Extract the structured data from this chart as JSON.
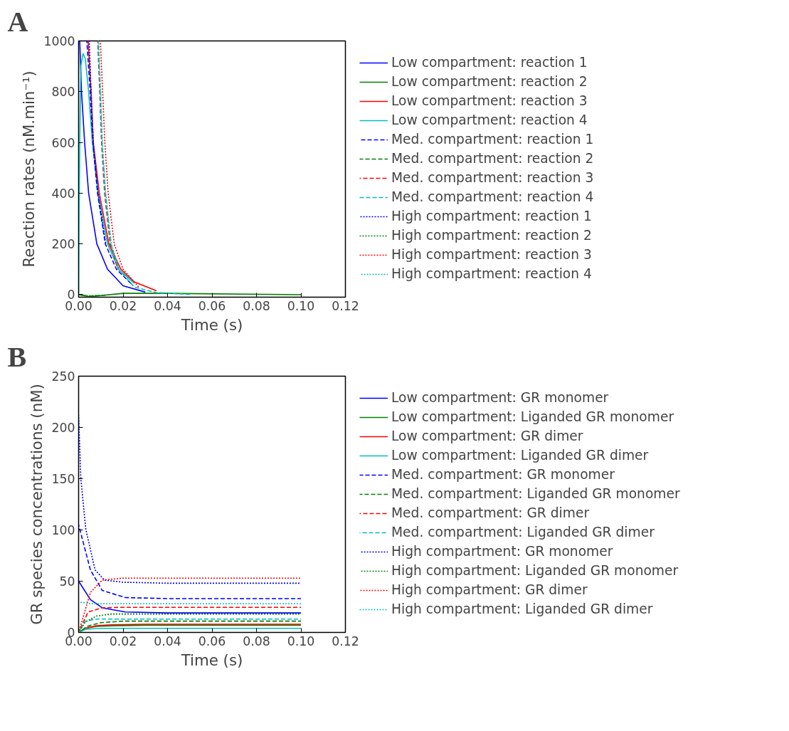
{
  "chart_data": [
    {
      "type": "line",
      "title": "A",
      "xlabel": "Time (s)",
      "ylabel": "Reaction rates (nM.min⁻¹)",
      "xlim": [
        0,
        0.12
      ],
      "ylim": [
        -10,
        1000
      ],
      "xticks": [
        {
          "value": 0,
          "label": "0.00"
        },
        {
          "value": 0.02,
          "label": "0.02"
        },
        {
          "value": 0.04,
          "label": "0.04"
        },
        {
          "value": 0.06,
          "label": "0.06"
        },
        {
          "value": 0.08,
          "label": "0.08"
        },
        {
          "value": 0.1,
          "label": "0.10"
        },
        {
          "value": 0.12,
          "label": "0.12"
        }
      ],
      "yticks": [
        0,
        200,
        400,
        600,
        800,
        1000
      ],
      "grid": false,
      "legend": "right",
      "series": [
        {
          "name": "Low compartment: reaction 1",
          "color": "#0000ff",
          "line_style": "solid",
          "x": [
            0.0005,
            0.0013,
            0.0027,
            0.0045,
            0.0082,
            0.013,
            0.02,
            0.03
          ],
          "values": [
            1000,
            800,
            600,
            400,
            200,
            100,
            35,
            10
          ]
        },
        {
          "name": "Low compartment: reaction 2",
          "color": "#008000",
          "line_style": "solid",
          "x": [
            0,
            0.005,
            0.02,
            0.04,
            0.1
          ],
          "values": [
            0,
            -8,
            5,
            5,
            0
          ]
        },
        {
          "name": "Low compartment: reaction 3",
          "color": "#ff0000",
          "line_style": "solid",
          "x": [
            0.0043,
            0.0056,
            0.0066,
            0.0093,
            0.0136,
            0.019,
            0.025,
            0.035
          ],
          "values": [
            1000,
            800,
            600,
            400,
            200,
            100,
            50,
            15
          ]
        },
        {
          "name": "Low compartment: reaction 4",
          "color": "#00bfbf",
          "line_style": "solid",
          "x": [
            0,
            0.0005,
            0.001,
            0.002,
            0.003,
            0.0045,
            0.0062,
            0.0088,
            0.013,
            0.018,
            0.025
          ],
          "values": [
            0,
            600,
            900,
            950,
            930,
            800,
            600,
            400,
            200,
            100,
            45
          ]
        },
        {
          "name": "Med. compartment: reaction 1",
          "color": "#0000ff",
          "line_style": "dashed",
          "x": [
            0.0037,
            0.0052,
            0.0064,
            0.0085,
            0.012,
            0.017,
            0.024
          ],
          "values": [
            1000,
            800,
            600,
            400,
            200,
            100,
            40
          ]
        },
        {
          "name": "Med. compartment: reaction 2",
          "color": "#008000",
          "line_style": "dashed",
          "x": [
            0,
            0.005,
            0.012
          ],
          "values": [
            0,
            -6,
            -2
          ]
        },
        {
          "name": "Med. compartment: reaction 3",
          "color": "#ff0000",
          "line_style": "dashed",
          "x": [
            0.0086,
            0.0095,
            0.0103,
            0.0117,
            0.0142,
            0.0177
          ],
          "values": [
            1000,
            800,
            600,
            400,
            200,
            100
          ]
        },
        {
          "name": "Med. compartment: reaction 4",
          "color": "#00bfbf",
          "line_style": "dashed",
          "x": [
            0.0088,
            0.0097,
            0.0105,
            0.012,
            0.0145,
            0.018,
            0.025,
            0.035,
            0.05
          ],
          "values": [
            1000,
            800,
            600,
            400,
            200,
            100,
            30,
            8,
            1
          ]
        },
        {
          "name": "High compartment: reaction 1",
          "color": "#0000ff",
          "line_style": "dotted",
          "x": [
            0.0048,
            0.0056,
            0.0066,
            0.0087,
            0.0122
          ],
          "values": [
            1000,
            800,
            600,
            400,
            200
          ]
        },
        {
          "name": "High compartment: reaction 2",
          "color": "#008000",
          "line_style": "dotted",
          "x": [
            0,
            0.003,
            0.008
          ],
          "values": [
            0,
            -5,
            -3
          ]
        },
        {
          "name": "High compartment: reaction 3",
          "color": "#ff0000",
          "line_style": "dotted",
          "x": [
            0.0098,
            0.0108,
            0.0118,
            0.0133,
            0.016,
            0.02,
            0.027
          ],
          "values": [
            1000,
            800,
            600,
            400,
            200,
            100,
            30
          ]
        },
        {
          "name": "High compartment: reaction 4",
          "color": "#00bfbf",
          "line_style": "dotted",
          "x": [
            0.009,
            0.0099,
            0.0107,
            0.0122,
            0.0147,
            0.0183
          ],
          "values": [
            1000,
            800,
            600,
            400,
            200,
            100
          ]
        }
      ]
    },
    {
      "type": "line",
      "title": "B",
      "xlabel": "Time (s)",
      "ylabel": "GR species concentrations (nM)",
      "xlim": [
        0,
        0.12
      ],
      "ylim": [
        0,
        250
      ],
      "xticks": [
        {
          "value": 0,
          "label": "0.00"
        },
        {
          "value": 0.02,
          "label": "0.02"
        },
        {
          "value": 0.04,
          "label": "0.04"
        },
        {
          "value": 0.06,
          "label": "0.06"
        },
        {
          "value": 0.08,
          "label": "0.08"
        },
        {
          "value": 0.1,
          "label": "0.10"
        },
        {
          "value": 0.12,
          "label": "0.12"
        }
      ],
      "yticks": [
        0,
        50,
        100,
        150,
        200,
        250
      ],
      "grid": false,
      "legend": "right",
      "series": [
        {
          "name": "Low compartment: GR monomer",
          "color": "#0000ff",
          "line_style": "solid",
          "x": [
            0,
            0.0053,
            0.0106,
            0.021,
            0.04,
            0.1
          ],
          "values": [
            50,
            32,
            24,
            20,
            19,
            19
          ]
        },
        {
          "name": "Low compartment: Liganded GR monomer",
          "color": "#008000",
          "line_style": "solid",
          "x": [
            0,
            0.003,
            0.008,
            0.015,
            0.03,
            0.1
          ],
          "values": [
            0,
            4,
            6,
            6.5,
            7,
            7
          ]
        },
        {
          "name": "Low compartment: GR dimer",
          "color": "#ff0000",
          "line_style": "solid",
          "x": [
            0,
            0.003,
            0.008,
            0.015,
            0.03,
            0.1
          ],
          "values": [
            0,
            4,
            6.5,
            7.5,
            8,
            8
          ]
        },
        {
          "name": "Low compartment: Liganded GR dimer",
          "color": "#00bfbf",
          "line_style": "solid",
          "x": [
            0,
            0.003,
            0.008,
            0.015,
            0.1
          ],
          "values": [
            0,
            3,
            3.8,
            4,
            4
          ]
        },
        {
          "name": "Med. compartment: GR monomer",
          "color": "#0000ff",
          "line_style": "dashed",
          "x": [
            0,
            0.0053,
            0.0106,
            0.021,
            0.04,
            0.1
          ],
          "values": [
            105,
            61,
            41,
            34,
            33,
            33
          ]
        },
        {
          "name": "Med. compartment: Liganded GR monomer",
          "color": "#008000",
          "line_style": "dashed",
          "x": [
            0,
            0.004,
            0.01,
            0.02,
            0.04,
            0.1
          ],
          "values": [
            0,
            6,
            9.5,
            11,
            11,
            11
          ]
        },
        {
          "name": "Med. compartment: GR dimer",
          "color": "#ff0000",
          "line_style": "dashed",
          "x": [
            0,
            0.0043,
            0.0106,
            0.02,
            0.04,
            0.1
          ],
          "values": [
            0,
            20,
            24,
            24.5,
            24.5,
            24.5
          ]
        },
        {
          "name": "Med. compartment: Liganded GR dimer",
          "color": "#00bfbf",
          "line_style": "dashed",
          "x": [
            0,
            0.003,
            0.008,
            0.015,
            0.1
          ],
          "values": [
            0,
            11,
            13,
            13,
            13
          ]
        },
        {
          "name": "High compartment: GR monomer",
          "color": "#0000ff",
          "line_style": "dotted",
          "x": [
            0,
            0.001,
            0.0032,
            0.0074,
            0.0117,
            0.02,
            0.04,
            0.1
          ],
          "values": [
            212,
            150,
            101,
            61,
            51,
            49,
            48,
            48
          ]
        },
        {
          "name": "High compartment: Liganded GR monomer",
          "color": "#008000",
          "line_style": "dotted",
          "x": [
            0,
            0.003,
            0.008,
            0.015,
            0.03,
            0.1
          ],
          "values": [
            0,
            10,
            16,
            18,
            18,
            18
          ]
        },
        {
          "name": "High compartment: GR dimer",
          "color": "#ff0000",
          "line_style": "dotted",
          "x": [
            0,
            0.0053,
            0.0106,
            0.02,
            0.04,
            0.1
          ],
          "values": [
            0,
            39,
            51,
            53,
            53,
            53
          ]
        },
        {
          "name": "High compartment: Liganded GR dimer",
          "color": "#00bfbf",
          "line_style": "dotted",
          "x": [
            0,
            0.002,
            0.006,
            0.015,
            0.1
          ],
          "values": [
            30,
            29,
            28,
            28,
            28
          ]
        }
      ]
    }
  ]
}
